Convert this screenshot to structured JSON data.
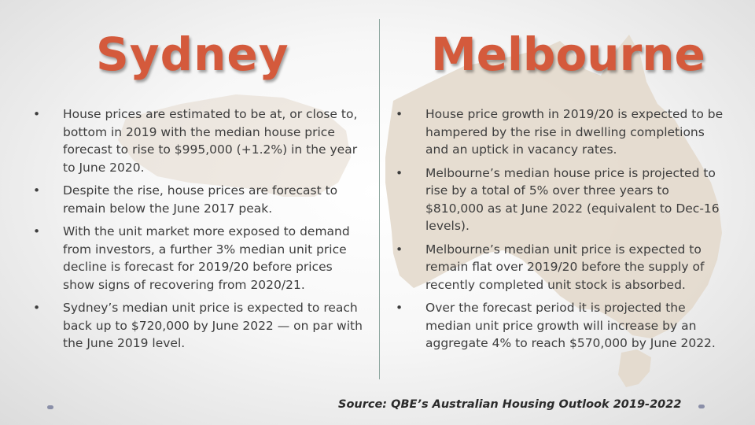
{
  "titles": {
    "left": "Sydney",
    "right": "Melbourne"
  },
  "sydney_bullets": [
    "House prices are estimated to be at, or close to, bottom in 2019 with the median house price forecast to rise to $995,000 (+1.2%) in the year to June 2020.",
    "Despite the rise, house prices are forecast to remain below the June 2017 peak.",
    "With the unit market more exposed to demand from investors, a further 3% median unit price decline is forecast for 2019/20 before prices show signs of recovering from 2020/21.",
    "Sydney’s median unit price is expected to reach back up to $720,000 by June 2022 — on par with the June 2019 level."
  ],
  "melbourne_bullets": [
    "House price growth in 2019/20 is expected to be hampered by the rise in dwelling completions and an uptick in vacancy rates.",
    "Melbourne’s median house price is projected to rise by a total of 5% over three years to $810,000 as at June 2022 (equivalent to Dec-16 levels).",
    "Melbourne’s median unit price is expected to remain flat over 2019/20 before the supply of recently completed unit stock is absorbed.",
    "Over the forecast period it is projected the median unit price growth will increase by an aggregate 4% to reach $570,000 by June 2022."
  ],
  "bullet_symbol": "•",
  "source": "Source: QBE’s Australian Housing Outlook 2019-2022",
  "colors": {
    "title": "#d45a3c",
    "map": "#e3d9cc",
    "divider": "#8fa8a0"
  }
}
